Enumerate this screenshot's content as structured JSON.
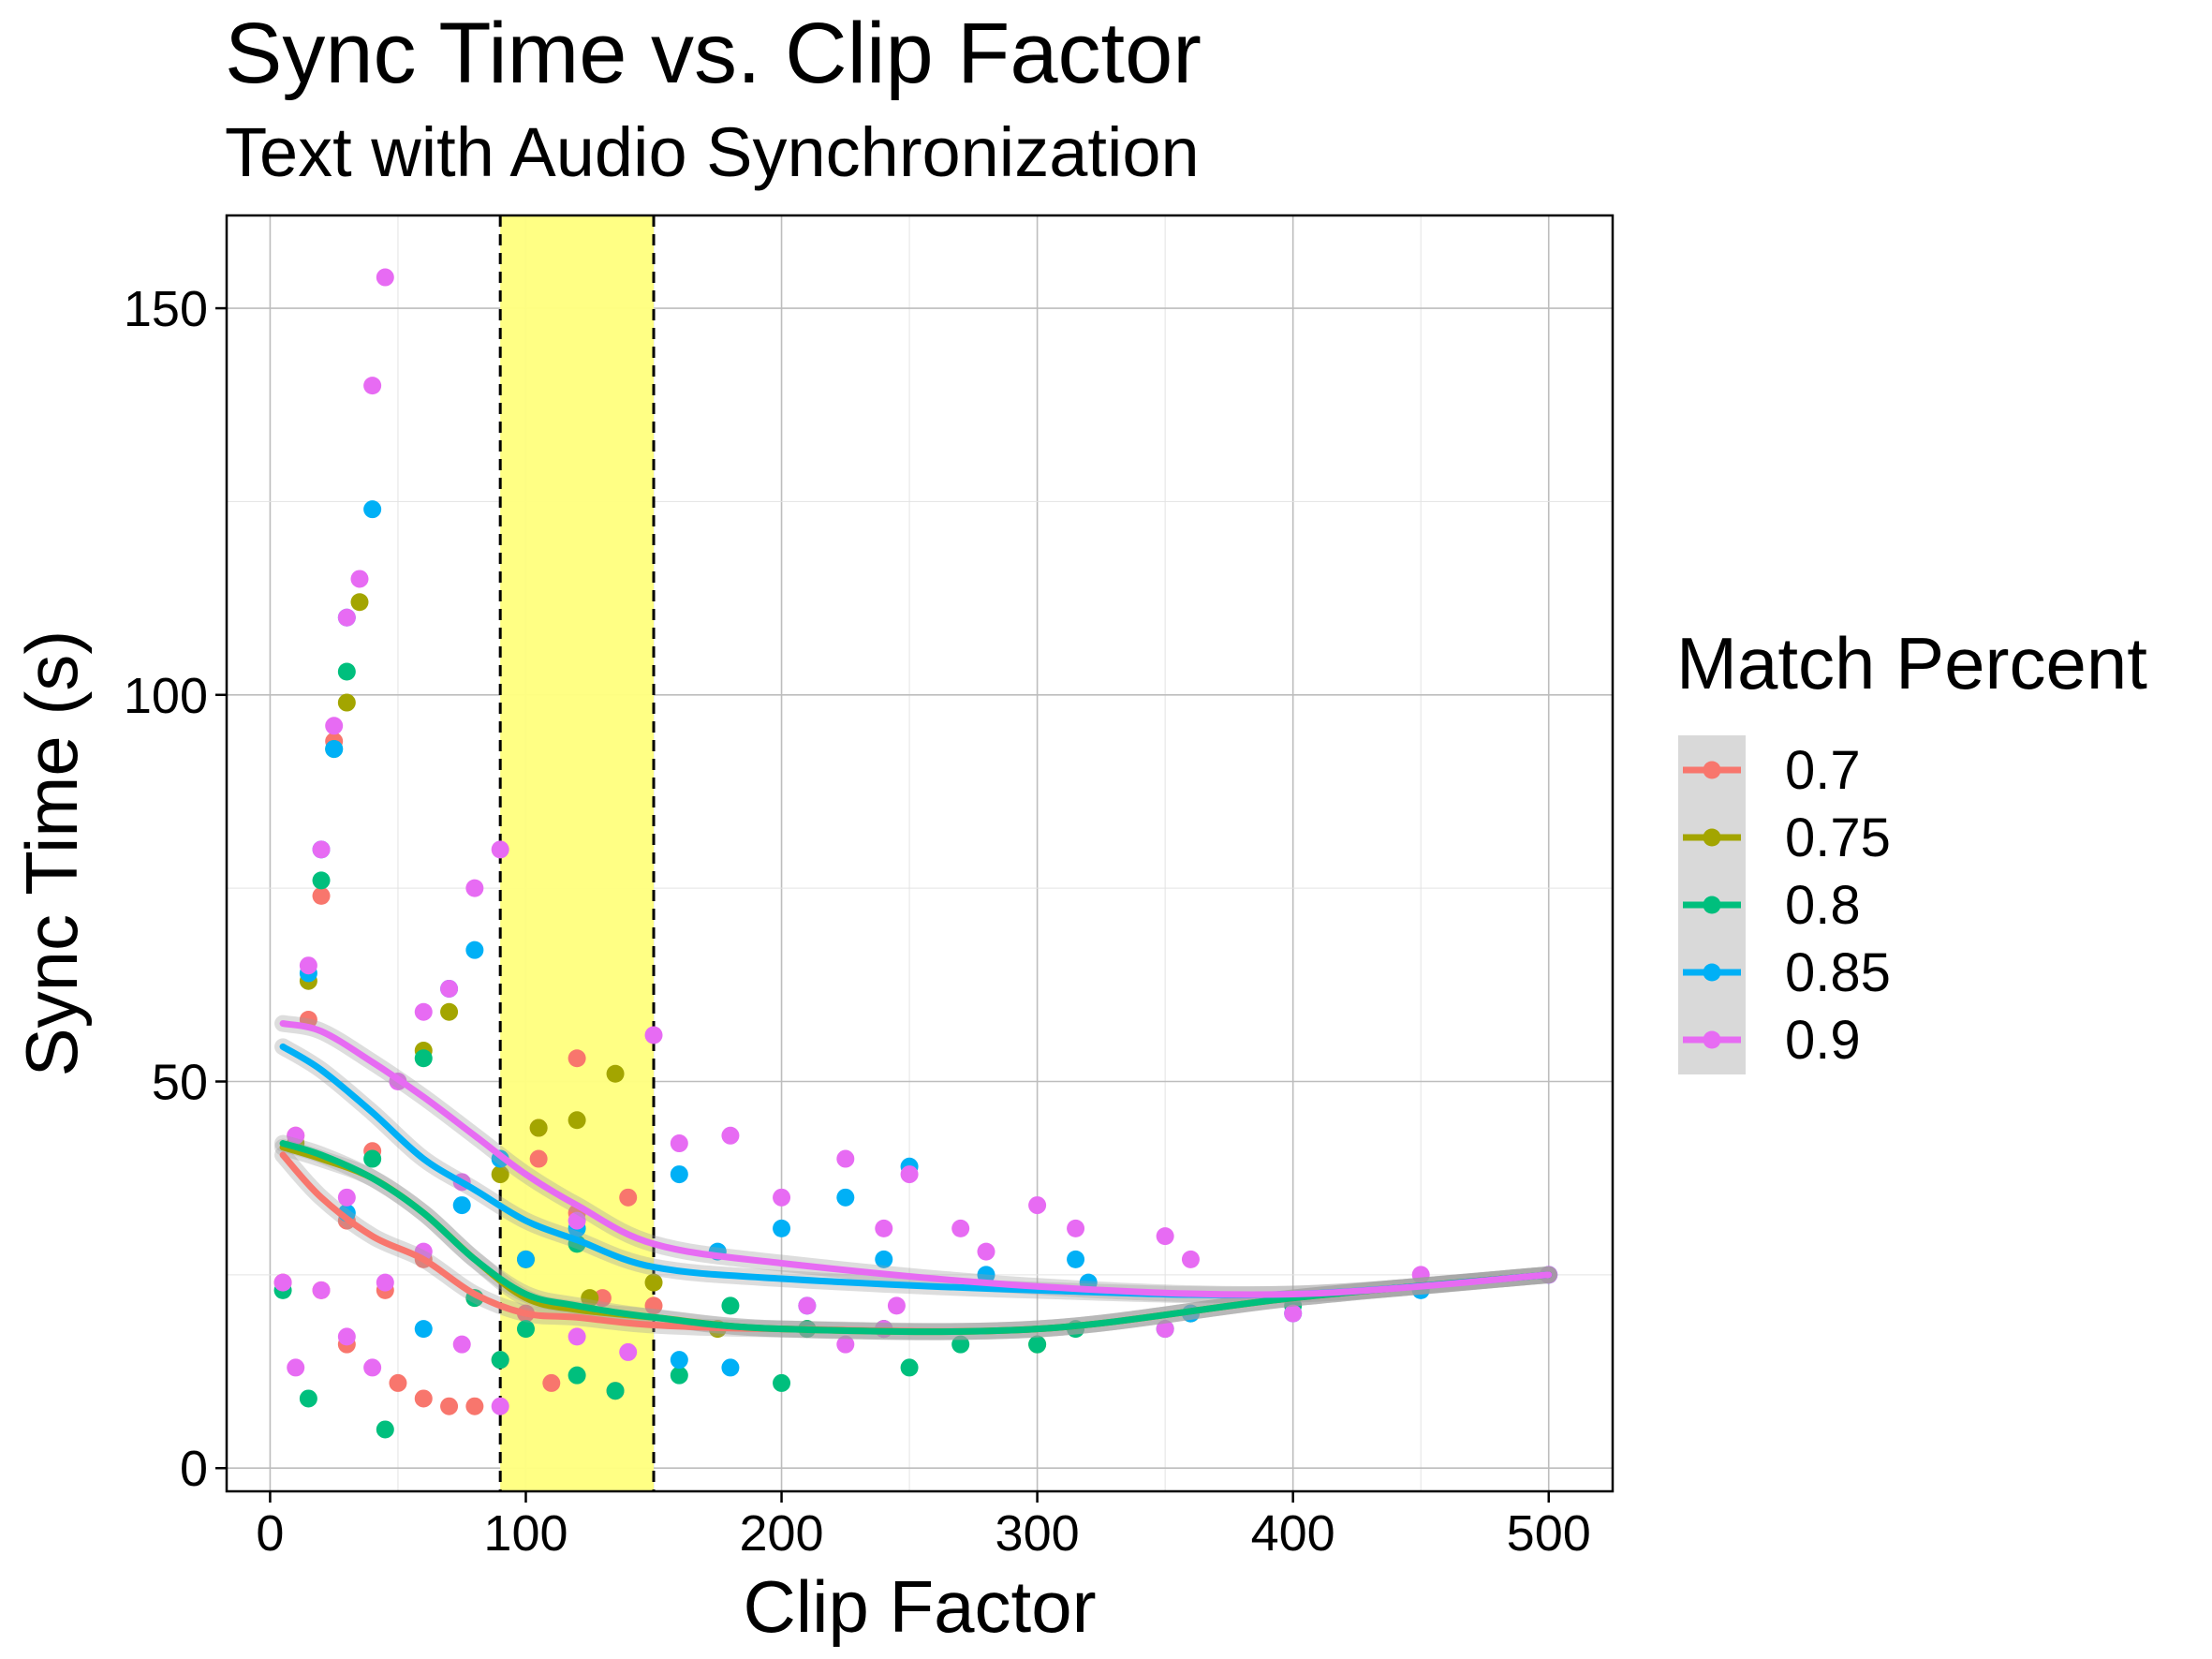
{
  "chart_data": {
    "type": "scatter",
    "title": "Sync Time vs. Clip Factor",
    "subtitle": "Text with Audio Synchronization",
    "xlabel": "Clip Factor",
    "ylabel": "Sync Time (s)",
    "xlim": [
      -17,
      525
    ],
    "ylim": [
      -3,
      162
    ],
    "xticks": [
      0,
      100,
      200,
      300,
      400,
      500
    ],
    "xtick_labels": [
      "0",
      "100",
      "200",
      "300",
      "400",
      "500"
    ],
    "yticks": [
      0,
      50,
      100,
      150
    ],
    "ytick_labels": [
      "0",
      "50",
      "100",
      "150"
    ],
    "grid": true,
    "highlight_band": {
      "x_start": 90,
      "x_end": 150,
      "color": "#FFFF80",
      "border_style": "dashed"
    },
    "legend": {
      "title": "Match Percent",
      "position": "right"
    },
    "series": [
      {
        "name": "0.7",
        "color": "#F8766D",
        "points": [
          [
            5,
            24
          ],
          [
            10,
            43
          ],
          [
            15,
            58
          ],
          [
            20,
            23
          ],
          [
            20,
            74
          ],
          [
            25,
            94
          ],
          [
            30,
            16
          ],
          [
            30,
            32
          ],
          [
            40,
            41
          ],
          [
            45,
            23
          ],
          [
            50,
            11
          ],
          [
            60,
            27
          ],
          [
            60,
            9
          ],
          [
            70,
            8
          ],
          [
            80,
            8
          ],
          [
            90,
            14
          ],
          [
            100,
            20
          ],
          [
            105,
            44
          ],
          [
            105,
            40
          ],
          [
            110,
            11
          ],
          [
            120,
            53
          ],
          [
            120,
            33
          ],
          [
            130,
            22
          ],
          [
            135,
            10
          ],
          [
            140,
            35
          ],
          [
            150,
            21
          ]
        ],
        "smooth": [
          [
            5,
            40.5
          ],
          [
            20,
            35
          ],
          [
            40,
            30
          ],
          [
            60,
            27
          ],
          [
            80,
            22.5
          ],
          [
            100,
            20
          ],
          [
            120,
            19.5
          ],
          [
            150,
            18.5
          ],
          [
            200,
            18
          ],
          [
            300,
            18
          ],
          [
            400,
            22
          ],
          [
            500,
            25
          ]
        ]
      },
      {
        "name": "0.75",
        "color": "#A3A500",
        "points": [
          [
            10,
            42
          ],
          [
            15,
            63
          ],
          [
            30,
            99
          ],
          [
            35,
            112
          ],
          [
            60,
            54
          ],
          [
            70,
            59
          ],
          [
            80,
            22
          ],
          [
            90,
            38
          ],
          [
            100,
            27
          ],
          [
            105,
            44
          ],
          [
            120,
            45
          ],
          [
            125,
            22
          ],
          [
            135,
            51
          ],
          [
            150,
            24
          ],
          [
            175,
            18
          ],
          [
            210,
            18
          ],
          [
            240,
            18
          ],
          [
            300,
            16
          ],
          [
            360,
            20
          ]
        ],
        "smooth": [
          [
            5,
            41.5
          ],
          [
            20,
            40
          ],
          [
            40,
            37.5
          ],
          [
            60,
            33
          ],
          [
            80,
            27
          ],
          [
            100,
            22
          ],
          [
            120,
            20.5
          ],
          [
            150,
            19.5
          ],
          [
            200,
            18
          ],
          [
            300,
            18
          ],
          [
            400,
            22
          ],
          [
            500,
            25
          ]
        ]
      },
      {
        "name": "0.8",
        "color": "#00BF7D",
        "points": [
          [
            5,
            23
          ],
          [
            15,
            9
          ],
          [
            20,
            76
          ],
          [
            25,
            93
          ],
          [
            30,
            103
          ],
          [
            40,
            40
          ],
          [
            45,
            5
          ],
          [
            60,
            53
          ],
          [
            80,
            22
          ],
          [
            90,
            14
          ],
          [
            100,
            18
          ],
          [
            120,
            29
          ],
          [
            120,
            12
          ],
          [
            135,
            10
          ],
          [
            160,
            12
          ],
          [
            180,
            21
          ],
          [
            200,
            11
          ],
          [
            210,
            18
          ],
          [
            240,
            18
          ],
          [
            250,
            13
          ],
          [
            270,
            16
          ],
          [
            300,
            16
          ],
          [
            315,
            18
          ],
          [
            350,
            18
          ],
          [
            400,
            21
          ]
        ],
        "smooth": [
          [
            5,
            42
          ],
          [
            20,
            40.5
          ],
          [
            40,
            37.5
          ],
          [
            60,
            33
          ],
          [
            80,
            27
          ],
          [
            100,
            22.5
          ],
          [
            120,
            21
          ],
          [
            150,
            19.5
          ],
          [
            200,
            18
          ],
          [
            300,
            18
          ],
          [
            400,
            22
          ],
          [
            500,
            25
          ]
        ]
      },
      {
        "name": "0.85",
        "color": "#00B0F6",
        "points": [
          [
            15,
            64
          ],
          [
            20,
            80
          ],
          [
            25,
            93
          ],
          [
            30,
            33
          ],
          [
            30,
            110
          ],
          [
            40,
            124
          ],
          [
            60,
            18
          ],
          [
            70,
            62
          ],
          [
            75,
            34
          ],
          [
            80,
            67
          ],
          [
            90,
            40
          ],
          [
            100,
            27
          ],
          [
            120,
            31
          ],
          [
            160,
            14
          ],
          [
            160,
            38
          ],
          [
            175,
            28
          ],
          [
            180,
            13
          ],
          [
            200,
            31
          ],
          [
            210,
            21
          ],
          [
            225,
            35
          ],
          [
            240,
            27
          ],
          [
            250,
            39
          ],
          [
            280,
            25
          ],
          [
            315,
            27
          ],
          [
            320,
            24
          ],
          [
            360,
            20
          ],
          [
            400,
            20
          ],
          [
            450,
            23
          ],
          [
            500,
            25
          ]
        ],
        "smooth": [
          [
            5,
            54.5
          ],
          [
            20,
            51.5
          ],
          [
            40,
            46
          ],
          [
            60,
            40
          ],
          [
            80,
            36
          ],
          [
            100,
            32
          ],
          [
            120,
            29.5
          ],
          [
            150,
            26
          ],
          [
            200,
            24.5
          ],
          [
            300,
            23
          ],
          [
            400,
            22.5
          ],
          [
            500,
            25
          ]
        ]
      },
      {
        "name": "0.9",
        "color": "#E76BF3",
        "points": [
          [
            5,
            24
          ],
          [
            10,
            13
          ],
          [
            10,
            43
          ],
          [
            15,
            65
          ],
          [
            20,
            80
          ],
          [
            20,
            23
          ],
          [
            25,
            96
          ],
          [
            30,
            17
          ],
          [
            30,
            35
          ],
          [
            30,
            110
          ],
          [
            35,
            115
          ],
          [
            40,
            140
          ],
          [
            40,
            13
          ],
          [
            45,
            24
          ],
          [
            45,
            154
          ],
          [
            50,
            50
          ],
          [
            60,
            59
          ],
          [
            60,
            28
          ],
          [
            70,
            62
          ],
          [
            75,
            37
          ],
          [
            75,
            16
          ],
          [
            80,
            75
          ],
          [
            90,
            80
          ],
          [
            90,
            8
          ],
          [
            120,
            17
          ],
          [
            120,
            32
          ],
          [
            140,
            15
          ],
          [
            150,
            56
          ],
          [
            160,
            42
          ],
          [
            180,
            43
          ],
          [
            200,
            35
          ],
          [
            210,
            21
          ],
          [
            225,
            40
          ],
          [
            225,
            16
          ],
          [
            240,
            31
          ],
          [
            240,
            18
          ],
          [
            245,
            21
          ],
          [
            250,
            38
          ],
          [
            270,
            31
          ],
          [
            280,
            28
          ],
          [
            300,
            34
          ],
          [
            315,
            31
          ],
          [
            350,
            30
          ],
          [
            360,
            27
          ],
          [
            350,
            18
          ],
          [
            400,
            20
          ],
          [
            450,
            25
          ],
          [
            500,
            25
          ]
        ],
        "smooth": [
          [
            5,
            57.5
          ],
          [
            20,
            56.5
          ],
          [
            40,
            52.5
          ],
          [
            60,
            48
          ],
          [
            80,
            43
          ],
          [
            100,
            38
          ],
          [
            120,
            34
          ],
          [
            150,
            29
          ],
          [
            200,
            26.5
          ],
          [
            300,
            23.5
          ],
          [
            400,
            22.5
          ],
          [
            500,
            25
          ]
        ]
      }
    ]
  }
}
